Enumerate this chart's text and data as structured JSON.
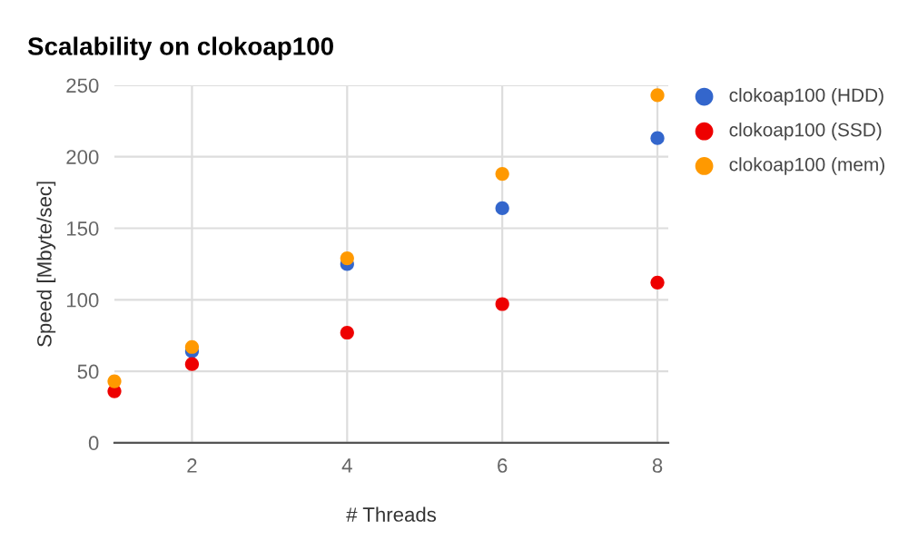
{
  "chart_data": {
    "type": "scatter",
    "title": "Scalability on clokoap100",
    "xlabel": "# Threads",
    "ylabel": "Speed [Mbyte/sec]",
    "x": [
      1,
      2,
      4,
      6,
      8
    ],
    "series": [
      {
        "name": "clokoap100 (HDD)",
        "color": "#3366cc",
        "values": [
          null,
          64,
          125,
          164,
          213
        ]
      },
      {
        "name": "clokoap100 (SSD)",
        "color": "#ee0000",
        "values": [
          36,
          55,
          77,
          97,
          112
        ]
      },
      {
        "name": "clokoap100 (mem)",
        "color": "#ff9900",
        "values": [
          43,
          67,
          129,
          188,
          243
        ]
      }
    ],
    "xlim": [
      1,
      8.14
    ],
    "xticks": [
      2,
      4,
      6,
      8
    ],
    "ylim": [
      0,
      250
    ],
    "yticks": [
      0,
      50,
      100,
      150,
      200,
      250
    ],
    "grid": true,
    "legend": "right",
    "marker": "circle"
  }
}
